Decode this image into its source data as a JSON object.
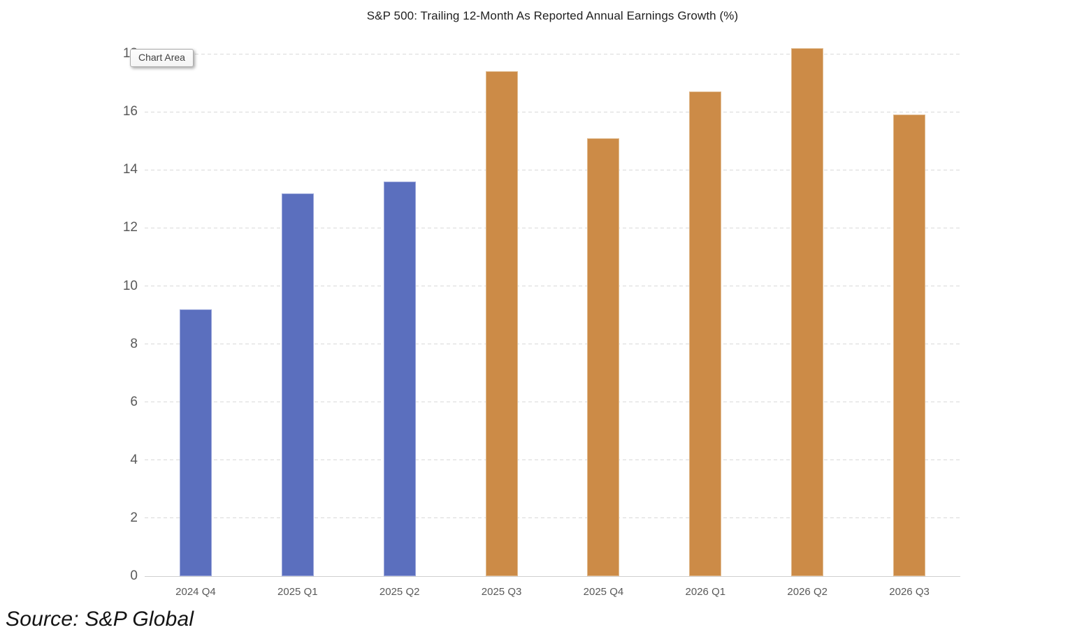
{
  "chart_data": {
    "type": "bar",
    "title": "S&P 500: Trailing 12-Month As Reported Annual Earnings Growth (%)",
    "categories": [
      "2024 Q4",
      "2025 Q1",
      "2025 Q2",
      "2025 Q3",
      "2025 Q4",
      "2026 Q1",
      "2026 Q2",
      "2026 Q3"
    ],
    "values": [
      9.2,
      13.2,
      13.6,
      17.4,
      15.1,
      16.7,
      18.2,
      15.9
    ],
    "bar_colors": [
      "#5B6FBE",
      "#5B6FBE",
      "#5B6FBE",
      "#CC8B47",
      "#CC8B47",
      "#CC8B47",
      "#CC8B47",
      "#CC8B47"
    ],
    "bar_border_colors": [
      "#9AA6DA",
      "#9AA6DA",
      "#9AA6DA",
      "#E0BA8E",
      "#E0BA8E",
      "#E0BA8E",
      "#E0BA8E",
      "#E0BA8E"
    ],
    "accent_blue": "#5B6FBE",
    "accent_orange": "#CC8B47",
    "gridline_color": "#D9D9D9",
    "axis_label_color": "#595959",
    "ylim": [
      0,
      18.5
    ],
    "yticks": [
      0,
      2,
      4,
      6,
      8,
      10,
      12,
      14,
      16,
      18
    ],
    "grid": "horizontal-dashed",
    "legend": "none"
  },
  "tooltip": {
    "label": "Chart Area"
  },
  "source": {
    "label": "Source: S&P Global"
  }
}
